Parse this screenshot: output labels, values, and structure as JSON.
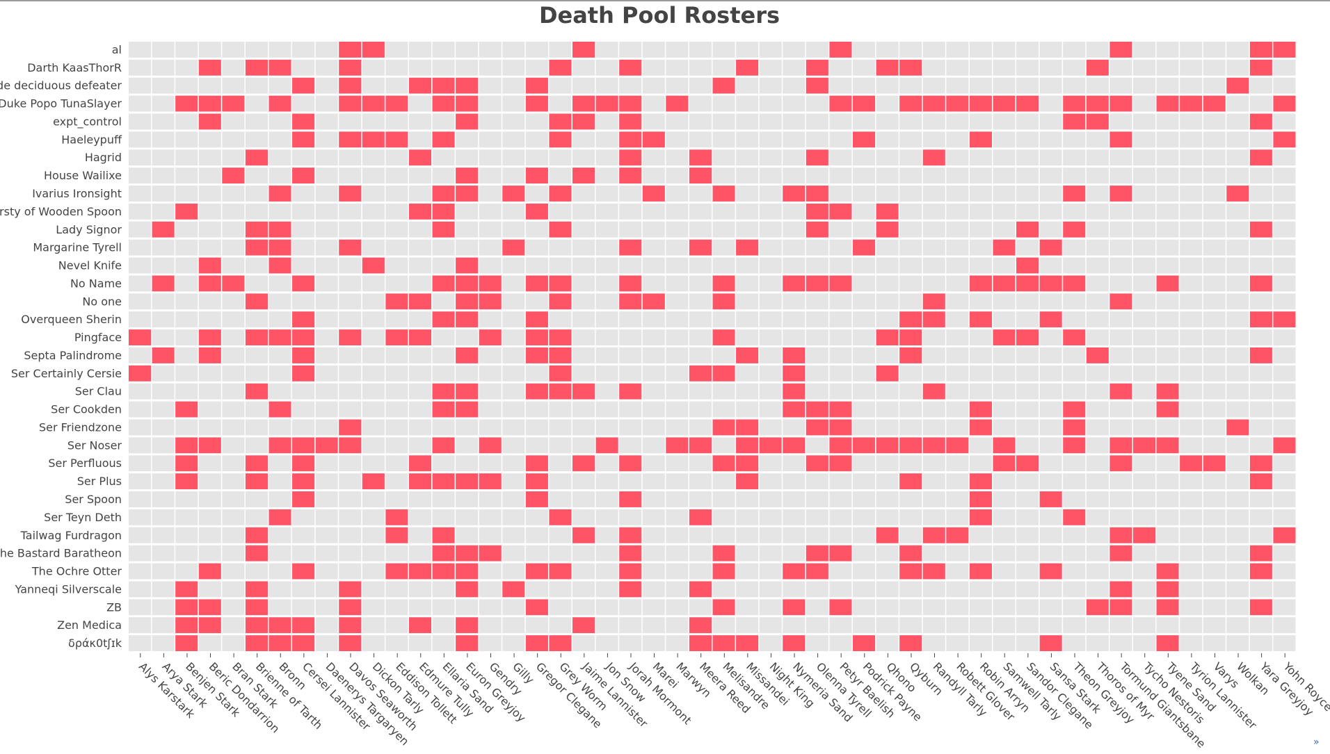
{
  "chart_data": {
    "type": "heatmap",
    "title": "Death Pool Rosters",
    "xlabel": "",
    "ylabel": "",
    "grid": true,
    "colors": {
      "selected": "#ff5466",
      "empty": "#e5e5e5",
      "gridline": "#ffffff"
    },
    "x": [
      "Alys Karstark",
      "Arya Stark",
      "Benjen Stark",
      "Beric Dondarrion",
      "Bran Stark",
      "Brienne of Tarth",
      "Bronn",
      "Cersei Lannister",
      "Daenerys Targaryen",
      "Davos Seaworth",
      "Dickon Tarly",
      "Eddison Tollett",
      "Edmure Tully",
      "Ellaria Sand",
      "Euron Greyjoy",
      "Gendry",
      "Gilly",
      "Gregor Clegane",
      "Grey Worm",
      "Jaime Lannister",
      "Jon Snow",
      "Jorah Mormont",
      "Marei",
      "Marwyn",
      "Meera Reed",
      "Melisandre",
      "Missandei",
      "Night King",
      "Nymeria Sand",
      "Olenna Tyrell",
      "Petyr Baelish",
      "Podrick Payne",
      "Qhono",
      "Qyburn",
      "Randyll Tarly",
      "Robett Glover",
      "Robin Arryn",
      "Samwell Tarly",
      "Sandor Clegane",
      "Sansa Stark",
      "Theon Greyjoy",
      "Thoros of Myr",
      "Tormund Giantsbane",
      "Tycho Nestoris",
      "Tyene Sand",
      "Tyrion Lannister",
      "Varys",
      "Wolkan",
      "Yara Greyjoy",
      "Yohn Royce"
    ],
    "y": [
      "al",
      "Darth KaasThorR",
      "de deciduous defeater",
      "Duke Popo TunaSlayer",
      "expt_control",
      "Haeleypuff",
      "Hagrid ",
      "House Wailixe",
      "Ivarius Ironsight",
      "Kirsty of Wooden Spoon",
      "Lady Signor",
      "Margarine Tyrell",
      "Nevel Knife",
      "No Name",
      "No one",
      "Overqueen Sherin",
      "Pingface",
      "Septa Palindrome",
      "Ser Certainly Cersie",
      "Ser Clau",
      "Ser Cookden",
      "Ser Friendzone",
      "Ser Noser",
      "Ser Perfluous",
      "Ser Plus",
      "Ser Spoon",
      "Ser Teyn Deth",
      "Tailwag Furdragon",
      "The Bastard Baratheon",
      "The Ochre Otter",
      "Yanneqi Silverscale",
      "ZB",
      "Zen Medica",
      "δράκ0tʃɪk"
    ],
    "picks": [
      [
        9,
        10,
        19,
        30,
        42,
        48,
        49
      ],
      [
        3,
        5,
        6,
        9,
        18,
        21,
        26,
        29,
        32,
        33,
        41,
        48
      ],
      [
        7,
        9,
        12,
        13,
        14,
        17,
        25,
        29,
        47
      ],
      [
        2,
        3,
        4,
        6,
        9,
        10,
        11,
        13,
        14,
        17,
        19,
        20,
        21,
        23,
        30,
        31,
        33,
        34,
        35,
        36,
        37,
        38,
        40,
        41,
        42,
        44,
        45,
        46,
        49
      ],
      [
        3,
        7,
        14,
        18,
        19,
        21,
        40,
        41,
        48
      ],
      [
        7,
        9,
        10,
        11,
        13,
        18,
        21,
        22,
        31,
        36,
        42,
        49
      ],
      [
        5,
        12,
        21,
        24,
        29,
        34,
        48
      ],
      [
        4,
        7,
        14,
        17,
        19,
        21,
        24
      ],
      [
        6,
        9,
        13,
        14,
        16,
        18,
        22,
        25,
        28,
        29,
        40,
        42,
        47
      ],
      [
        2,
        12,
        13,
        17,
        29,
        30,
        32
      ],
      [
        1,
        5,
        6,
        13,
        18,
        29,
        32,
        38,
        40,
        48
      ],
      [
        5,
        6,
        9,
        16,
        21,
        24,
        26,
        31,
        37,
        39
      ],
      [
        3,
        6,
        10,
        14,
        38
      ],
      [
        1,
        3,
        4,
        7,
        13,
        14,
        15,
        17,
        18,
        21,
        25,
        28,
        29,
        30,
        36,
        37,
        38,
        39,
        40,
        44,
        48
      ],
      [
        5,
        11,
        12,
        14,
        15,
        18,
        21,
        22,
        25,
        34,
        42
      ],
      [
        7,
        13,
        14,
        17,
        33,
        34,
        36,
        39,
        48,
        49
      ],
      [
        0,
        3,
        5,
        6,
        7,
        9,
        11,
        12,
        15,
        17,
        18,
        25,
        32,
        33,
        37,
        38,
        40
      ],
      [
        1,
        3,
        7,
        14,
        17,
        18,
        26,
        28,
        33,
        41,
        48
      ],
      [
        0,
        7,
        18,
        24,
        25,
        28,
        32
      ],
      [
        5,
        13,
        14,
        17,
        18,
        19,
        21,
        28,
        34,
        42,
        44
      ],
      [
        2,
        6,
        13,
        14,
        28,
        29,
        30,
        36,
        40,
        44
      ],
      [
        9,
        25,
        26,
        29,
        30,
        36,
        40,
        47
      ],
      [
        2,
        3,
        6,
        7,
        8,
        9,
        13,
        15,
        20,
        23,
        24,
        26,
        27,
        28,
        30,
        31,
        32,
        33,
        34,
        35,
        37,
        40,
        42,
        43,
        44,
        49
      ],
      [
        2,
        5,
        7,
        12,
        17,
        19,
        21,
        25,
        26,
        29,
        30,
        37,
        38,
        42,
        45,
        46,
        48
      ],
      [
        2,
        5,
        7,
        10,
        12,
        13,
        14,
        15,
        17,
        26,
        33,
        36,
        48
      ],
      [
        7,
        17,
        21,
        36,
        39
      ],
      [
        6,
        11,
        18,
        24,
        36,
        40
      ],
      [
        5,
        11,
        13,
        19,
        21,
        32,
        34,
        35,
        42,
        43,
        49
      ],
      [
        5,
        13,
        14,
        15,
        21,
        25,
        29,
        30,
        33,
        42,
        48
      ],
      [
        3,
        7,
        11,
        12,
        13,
        14,
        17,
        18,
        21,
        25,
        28,
        29,
        33,
        34,
        36,
        39,
        44,
        48
      ],
      [
        2,
        5,
        9,
        14,
        16,
        21,
        24,
        42,
        44
      ],
      [
        2,
        3,
        5,
        9,
        17,
        25,
        28,
        30,
        41,
        42,
        44,
        48
      ],
      [
        2,
        3,
        5,
        6,
        7,
        9,
        12,
        14,
        19,
        24
      ],
      [
        2,
        5,
        6,
        7,
        9,
        14,
        17,
        18,
        24,
        25,
        26,
        28,
        31,
        33,
        39,
        44
      ]
    ]
  },
  "corner_link": "»"
}
